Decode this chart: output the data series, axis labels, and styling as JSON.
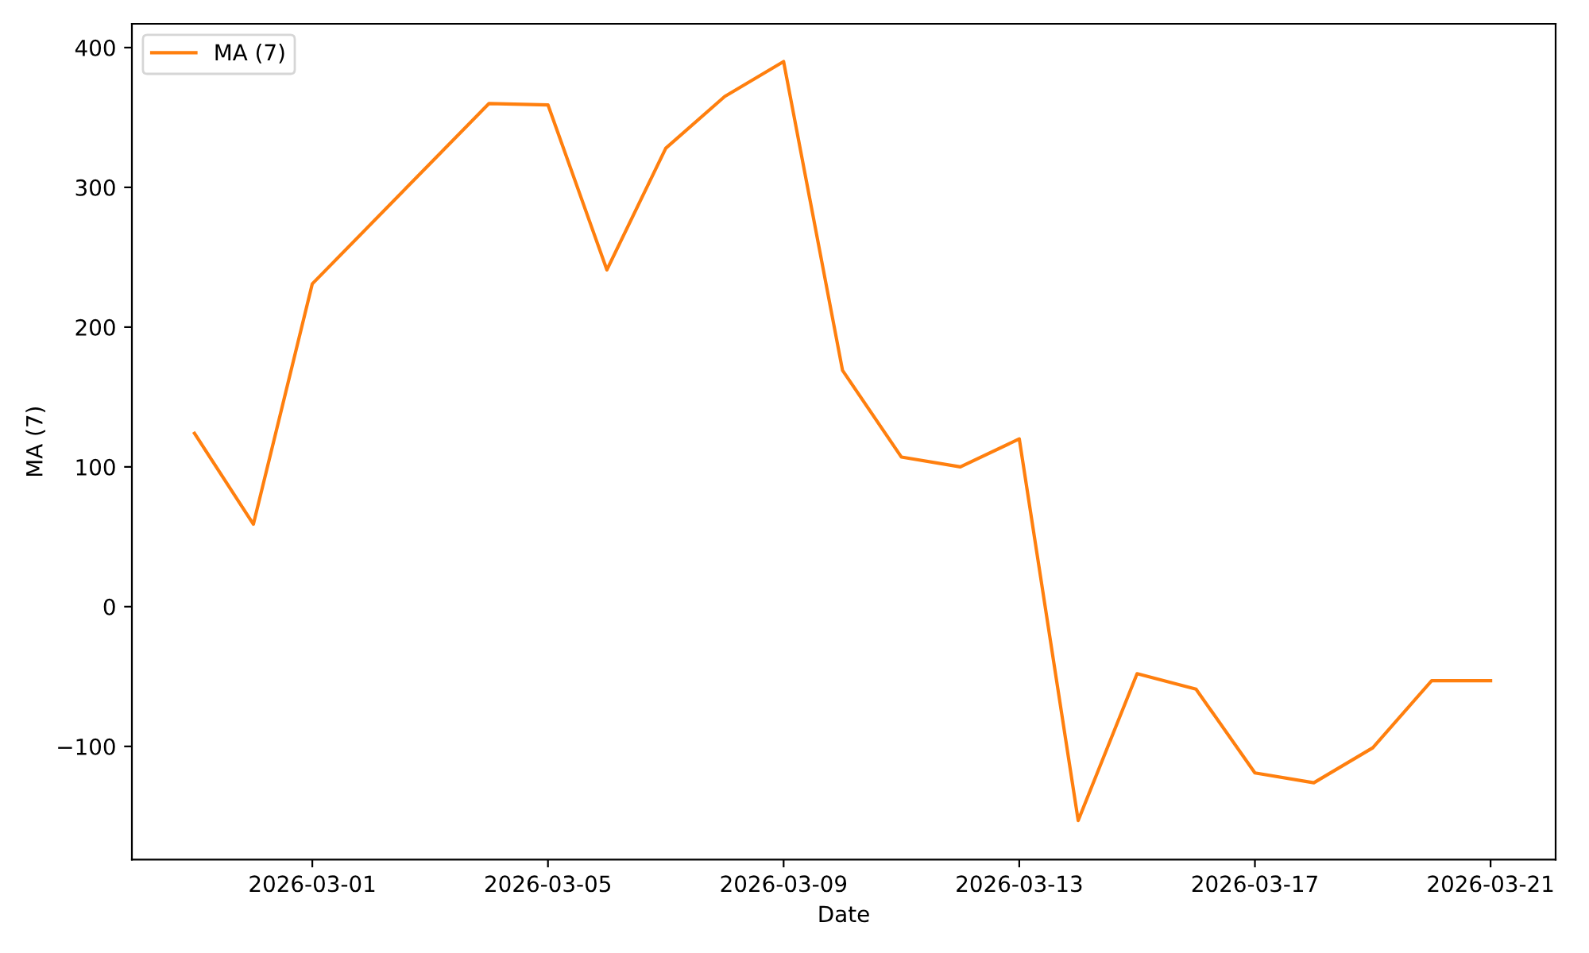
{
  "chart_data": {
    "type": "line",
    "xlabel": "Date",
    "ylabel": "MA (7)",
    "x": [
      "2026-02-27",
      "2026-02-28",
      "2026-03-01",
      "2026-03-04",
      "2026-03-05",
      "2026-03-06",
      "2026-03-07",
      "2026-03-08",
      "2026-03-09",
      "2026-03-10",
      "2026-03-11",
      "2026-03-12",
      "2026-03-13",
      "2026-03-14",
      "2026-03-15",
      "2026-03-16",
      "2026-03-17",
      "2026-03-18",
      "2026-03-19",
      "2026-03-20",
      "2026-03-21"
    ],
    "series": [
      {
        "name": "MA (7)",
        "color": "#ff7f0e",
        "values": [
          124,
          59,
          231,
          360,
          359,
          241,
          328,
          365,
          390,
          169,
          107,
          100,
          120,
          -153,
          -48,
          -59,
          -119,
          -126,
          -101,
          -53,
          -53
        ]
      }
    ],
    "xlim": [
      "2026-02-25T22:30",
      "2026-03-22T02:30"
    ],
    "xticks": [
      "2026-03-01",
      "2026-03-05",
      "2026-03-09",
      "2026-03-13",
      "2026-03-17",
      "2026-03-21"
    ],
    "ylim": [
      -181,
      417
    ],
    "yticks": [
      {
        "value": -100,
        "label": "−100"
      },
      0,
      100,
      200,
      300,
      400
    ],
    "grid": false,
    "legend": "top left",
    "marker": "none",
    "line_style": "solid"
  }
}
